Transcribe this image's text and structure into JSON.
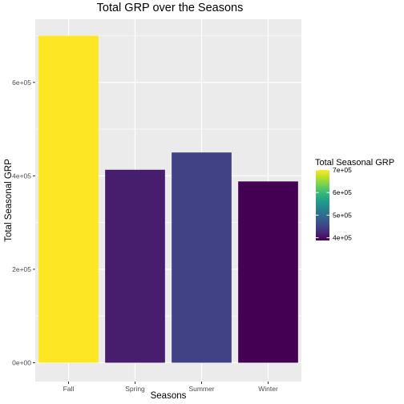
{
  "chart_data": {
    "type": "bar",
    "title": "Total GRP over the Seasons",
    "xlabel": "Seasons",
    "ylabel": "Total Seasonal GRP",
    "categories": [
      "Fall",
      "Spring",
      "Summer",
      "Winter"
    ],
    "values": [
      700000,
      413000,
      450000,
      388000
    ],
    "ylim": [
      0,
      735000
    ],
    "yticks": [
      0,
      200000,
      400000,
      600000
    ],
    "ytick_labels": [
      "0e+00",
      "2e+05",
      "4e+05",
      "6e+05"
    ],
    "grid": true,
    "panel_background": "#ebebeb",
    "grid_color": "#ffffff",
    "legend": {
      "title": "Total Seasonal GRP",
      "placement": "right",
      "min": 388000,
      "max": 700000,
      "ticks": [
        400000,
        500000,
        600000,
        700000
      ],
      "tick_labels": [
        "4e+05",
        "5e+05",
        "6e+05",
        "7e+05"
      ]
    },
    "colormap": [
      "#440154",
      "#482878",
      "#3e4989",
      "#31688e",
      "#26828e",
      "#1f9e89",
      "#35b779",
      "#6ece58",
      "#b5de2b",
      "#fde725"
    ]
  }
}
